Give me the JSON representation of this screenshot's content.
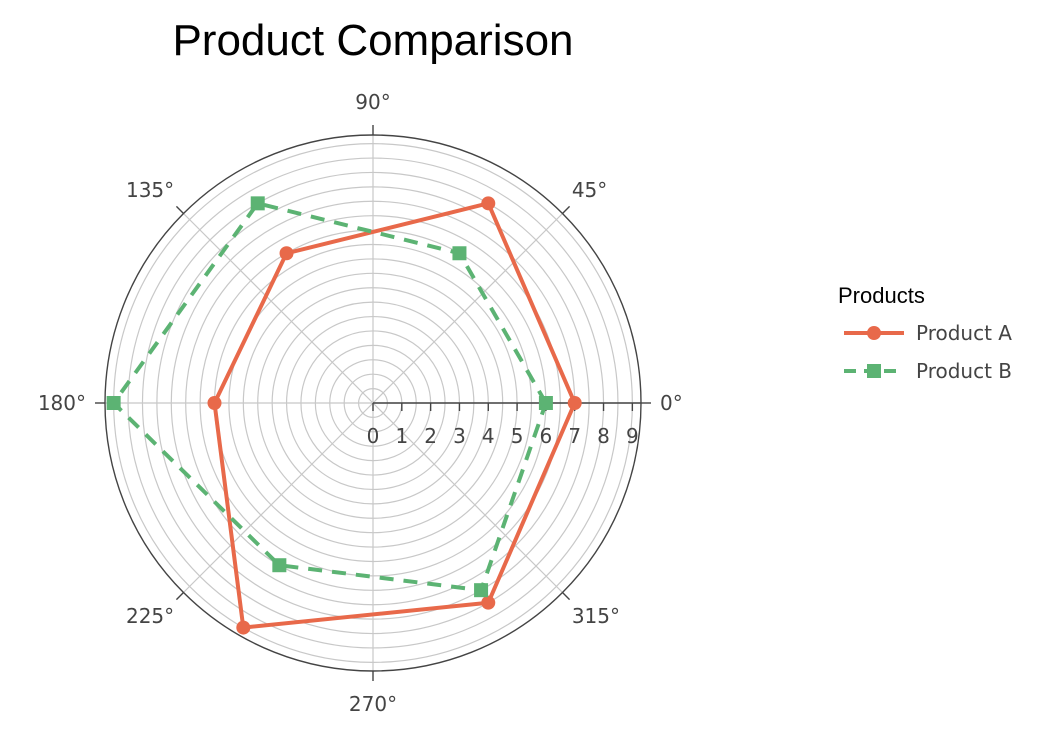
{
  "chart_data": {
    "type": "polar-line",
    "title": "Product Comparison",
    "angular_ticks": [
      "0°",
      "45°",
      "90°",
      "135°",
      "180°",
      "225°",
      "270°",
      "315°"
    ],
    "radial_ticks": [
      "0",
      "1",
      "2",
      "3",
      "4",
      "5",
      "6",
      "7",
      "8",
      "9"
    ],
    "radial_range": [
      0,
      9.3
    ],
    "grid": true,
    "legend": {
      "title": "Products",
      "position": "right"
    },
    "series": [
      {
        "name": "Product A",
        "color": "#e8694a",
        "marker": "circle",
        "dash": "solid",
        "points": [
          {
            "theta": 0,
            "r": 7
          },
          {
            "theta": 60,
            "r": 8
          },
          {
            "theta": 120,
            "r": 6
          },
          {
            "theta": 180,
            "r": 5.5
          },
          {
            "theta": 240,
            "r": 9
          },
          {
            "theta": 300,
            "r": 8
          },
          {
            "theta": 360,
            "r": 7
          }
        ]
      },
      {
        "name": "Product B",
        "color": "#5cb373",
        "marker": "square",
        "dash": "dash",
        "points": [
          {
            "theta": 0,
            "r": 6
          },
          {
            "theta": 60,
            "r": 6
          },
          {
            "theta": 120,
            "r": 8
          },
          {
            "theta": 180,
            "r": 9
          },
          {
            "theta": 240,
            "r": 6.5
          },
          {
            "theta": 300,
            "r": 7.5
          },
          {
            "theta": 360,
            "r": 6
          }
        ]
      }
    ]
  }
}
